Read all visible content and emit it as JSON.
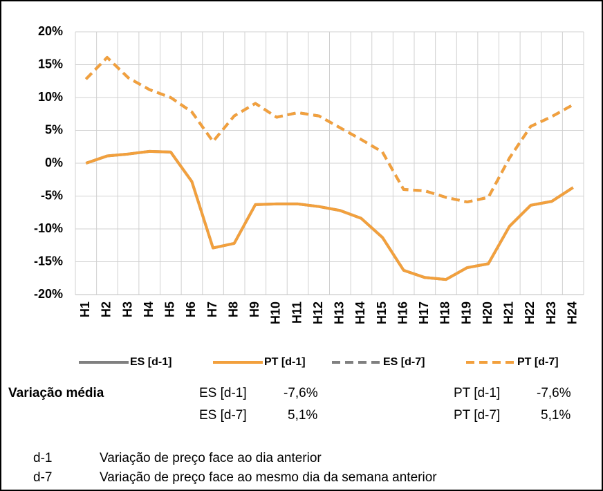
{
  "chart_data": {
    "type": "line",
    "categories": [
      "H1",
      "H2",
      "H3",
      "H4",
      "H5",
      "H6",
      "H7",
      "H8",
      "H9",
      "H10",
      "H11",
      "H12",
      "H13",
      "H14",
      "H15",
      "H16",
      "H17",
      "H18",
      "H19",
      "H20",
      "H21",
      "H22",
      "H23",
      "H24"
    ],
    "series": [
      {
        "name": "ES [d-1]",
        "color": "#808080",
        "dash": false,
        "values": [
          0,
          1.1,
          1.4,
          1.8,
          1.7,
          -2.8,
          -12.9,
          -12.2,
          -6.3,
          -6.2,
          -6.2,
          -6.6,
          -7.2,
          -8.4,
          -11.3,
          -16.3,
          -17.4,
          -17.7,
          -15.9,
          -15.3,
          -9.6,
          -6.4,
          -5.8,
          -3.7
        ]
      },
      {
        "name": "PT [d-1]",
        "color": "#f2a03d",
        "dash": false,
        "values": [
          0,
          1.1,
          1.4,
          1.8,
          1.7,
          -2.8,
          -12.9,
          -12.2,
          -6.3,
          -6.2,
          -6.2,
          -6.6,
          -7.2,
          -8.4,
          -11.3,
          -16.3,
          -17.4,
          -17.7,
          -15.9,
          -15.3,
          -9.6,
          -6.4,
          -5.8,
          -3.7
        ]
      },
      {
        "name": "ES [d-7]",
        "color": "#808080",
        "dash": true,
        "values": [
          12.8,
          16.1,
          13,
          11.2,
          10,
          7.8,
          3.3,
          7.2,
          9.1,
          7,
          7.7,
          7.2,
          5.4,
          3.6,
          1.7,
          -4,
          -4.2,
          -5.2,
          -5.9,
          -5.2,
          0.8,
          5.6,
          7.1,
          8.9
        ]
      },
      {
        "name": "PT [d-7]",
        "color": "#f2a03d",
        "dash": true,
        "values": [
          12.8,
          16.1,
          13,
          11.2,
          10,
          7.8,
          3.3,
          7.2,
          9.1,
          7,
          7.7,
          7.2,
          5.4,
          3.6,
          1.7,
          -4,
          -4.2,
          -5.2,
          -5.9,
          -5.2,
          0.8,
          5.6,
          7.1,
          8.9
        ]
      }
    ],
    "ylim": [
      -20,
      20
    ],
    "yticks": [
      {
        "value": -20,
        "label": "-20%"
      },
      {
        "value": -15,
        "label": "-15%"
      },
      {
        "value": -10,
        "label": "-10%"
      },
      {
        "value": -5,
        "label": "-5%"
      },
      {
        "value": 0,
        "label": "0%"
      },
      {
        "value": 5,
        "label": "5%"
      },
      {
        "value": 10,
        "label": "10%"
      },
      {
        "value": 15,
        "label": "15%"
      },
      {
        "value": 20,
        "label": "20%"
      }
    ],
    "grid": true,
    "legend": "bottom"
  },
  "summary": {
    "title": "Variação média",
    "items": [
      {
        "label": "ES [d-1]",
        "value": "-7,6%"
      },
      {
        "label": "PT [d-1]",
        "value": "-7,6%"
      },
      {
        "label": "ES [d-7]",
        "value": "5,1%"
      },
      {
        "label": "PT [d-7]",
        "value": "5,1%"
      }
    ]
  },
  "footnotes": [
    {
      "code": "d-1",
      "text": "Variação de preço face ao dia anterior"
    },
    {
      "code": "d-7",
      "text": "Variação de preço face ao mesmo dia da semana anterior"
    }
  ]
}
